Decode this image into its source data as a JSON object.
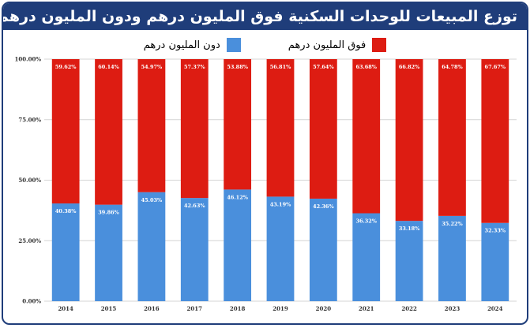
{
  "chart_data": {
    "type": "bar",
    "stacked": true,
    "percent_stacked": true,
    "title": "توزع المبيعات للوحدات السكنية فوق المليون درهم ودون المليون درهم",
    "categories": [
      "2014",
      "2015",
      "2016",
      "2017",
      "2018",
      "2019",
      "2020",
      "2021",
      "2022",
      "2023",
      "2024"
    ],
    "series": [
      {
        "name": "دون المليون درهم",
        "color": "#4a8fdc",
        "values": [
          40.38,
          39.86,
          45.03,
          42.63,
          46.12,
          43.19,
          42.36,
          36.32,
          33.18,
          35.22,
          32.33
        ],
        "labels": [
          "40.38%",
          "39.86%",
          "45.03%",
          "42.63%",
          "46.12%",
          "43.19%",
          "42.36%",
          "36.32%",
          "33.18%",
          "35.22%",
          "32.33%"
        ]
      },
      {
        "name": "فوق المليون درهم",
        "color": "#dd1c12",
        "values": [
          59.62,
          60.14,
          54.97,
          57.37,
          53.88,
          56.81,
          57.64,
          63.68,
          66.82,
          64.78,
          67.67
        ],
        "labels": [
          "59.62%",
          "60.14%",
          "54.97%",
          "57.37%",
          "53.88%",
          "56.81%",
          "57.64%",
          "63.68%",
          "66.82%",
          "64.78%",
          "67.67%"
        ]
      }
    ],
    "yticks": [
      "0.00%",
      "25.00%",
      "50.00%",
      "75.00%",
      "100.00%"
    ],
    "ylim": [
      0,
      100
    ],
    "legend_position": "top",
    "grid": true,
    "grid_color": "#d4d4d4",
    "title_bar_color": "#1f3d7a"
  }
}
